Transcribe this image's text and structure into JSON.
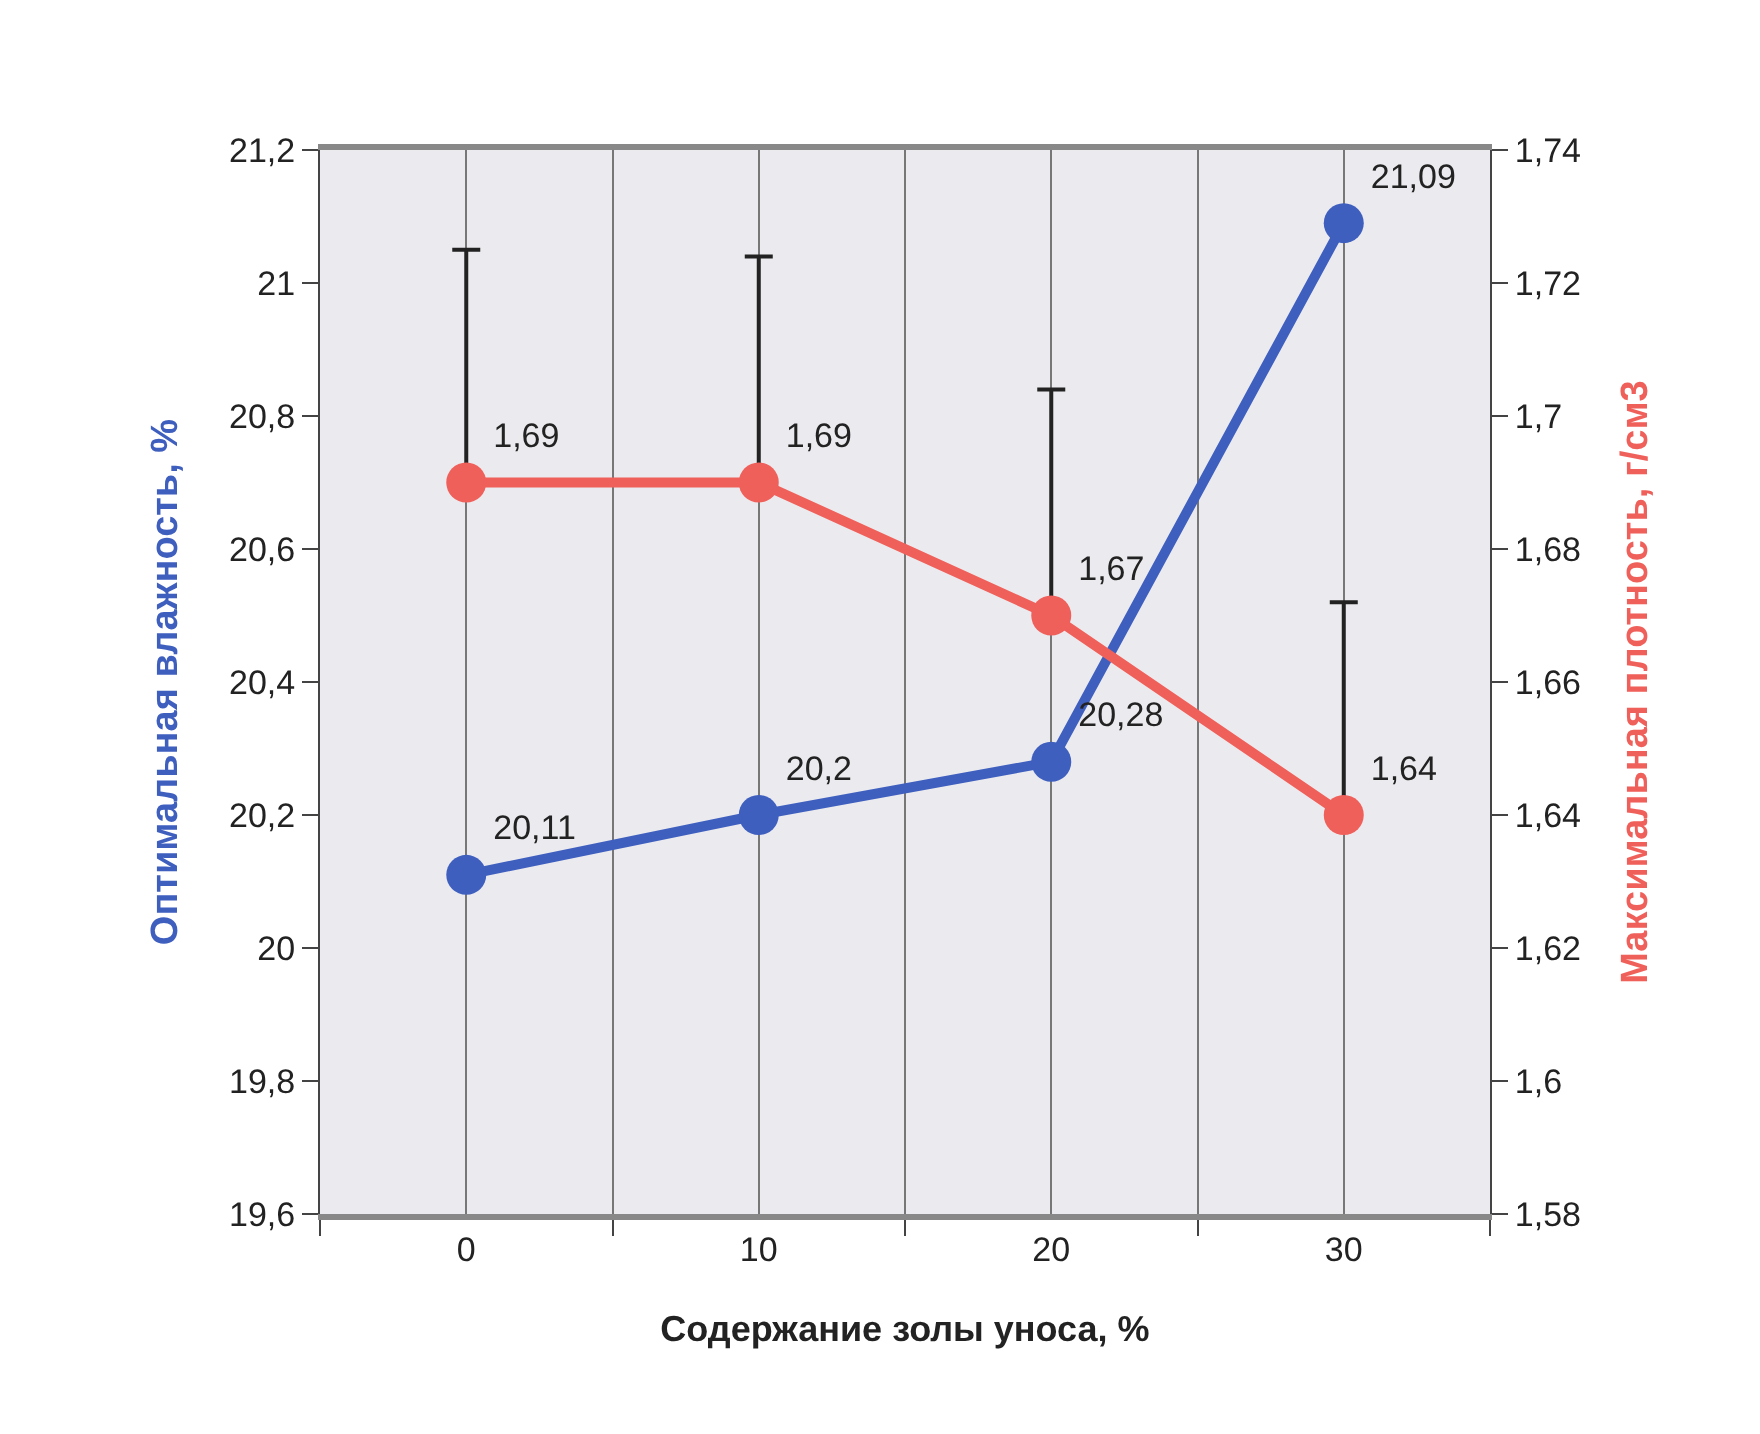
{
  "chart_data": {
    "type": "line",
    "xlabel": "Содержание золы уноса, %",
    "ylabel": "Оптимальная влажность, %",
    "y2label": "Максимальная плотность, г/см3",
    "x": [
      0,
      10,
      20,
      30
    ],
    "xlim": [
      -5,
      35
    ],
    "xticks": [
      0,
      10,
      20,
      30
    ],
    "ylim": [
      19.6,
      21.2
    ],
    "yticks": [
      {
        "value": 19.6,
        "label": "19,6"
      },
      {
        "value": 19.8,
        "label": "19,8"
      },
      {
        "value": 20,
        "label": "20"
      },
      {
        "value": 20.2,
        "label": "20,2"
      },
      {
        "value": 20.4,
        "label": "20,4"
      },
      {
        "value": 20.6,
        "label": "20,6"
      },
      {
        "value": 20.8,
        "label": "20,8"
      },
      {
        "value": 21,
        "label": "21"
      },
      {
        "value": 21.2,
        "label": "21,2"
      }
    ],
    "y2lim": [
      1.58,
      1.74
    ],
    "y2ticks": [
      {
        "value": 1.58,
        "label": "1,58"
      },
      {
        "value": 1.6,
        "label": "1,6"
      },
      {
        "value": 1.62,
        "label": "1,62"
      },
      {
        "value": 1.64,
        "label": "1,64"
      },
      {
        "value": 1.66,
        "label": "1,66"
      },
      {
        "value": 1.68,
        "label": "1,68"
      },
      {
        "value": 1.7,
        "label": "1,7"
      },
      {
        "value": 1.72,
        "label": "1,72"
      },
      {
        "value": 1.74,
        "label": "1,74"
      }
    ],
    "series": [
      {
        "color": "#3f5fbf",
        "values": [
          20.11,
          20.2,
          20.28,
          21.09
        ],
        "value_labels": [
          "20,11",
          "20,2",
          "20,28",
          "21,09"
        ]
      },
      {
        "color": "#f0605a",
        "axis": "y2",
        "values": [
          1.69,
          1.69,
          1.67,
          1.64
        ],
        "value_labels": [
          "1,69",
          "1,69",
          "1,67",
          "1,64"
        ],
        "errors": [
          [
            1.69,
            1.725
          ],
          [
            1.69,
            1.724
          ],
          [
            1.67,
            1.704
          ],
          [
            1.64,
            1.672
          ]
        ]
      }
    ],
    "grid": "x",
    "marker": "circle"
  }
}
